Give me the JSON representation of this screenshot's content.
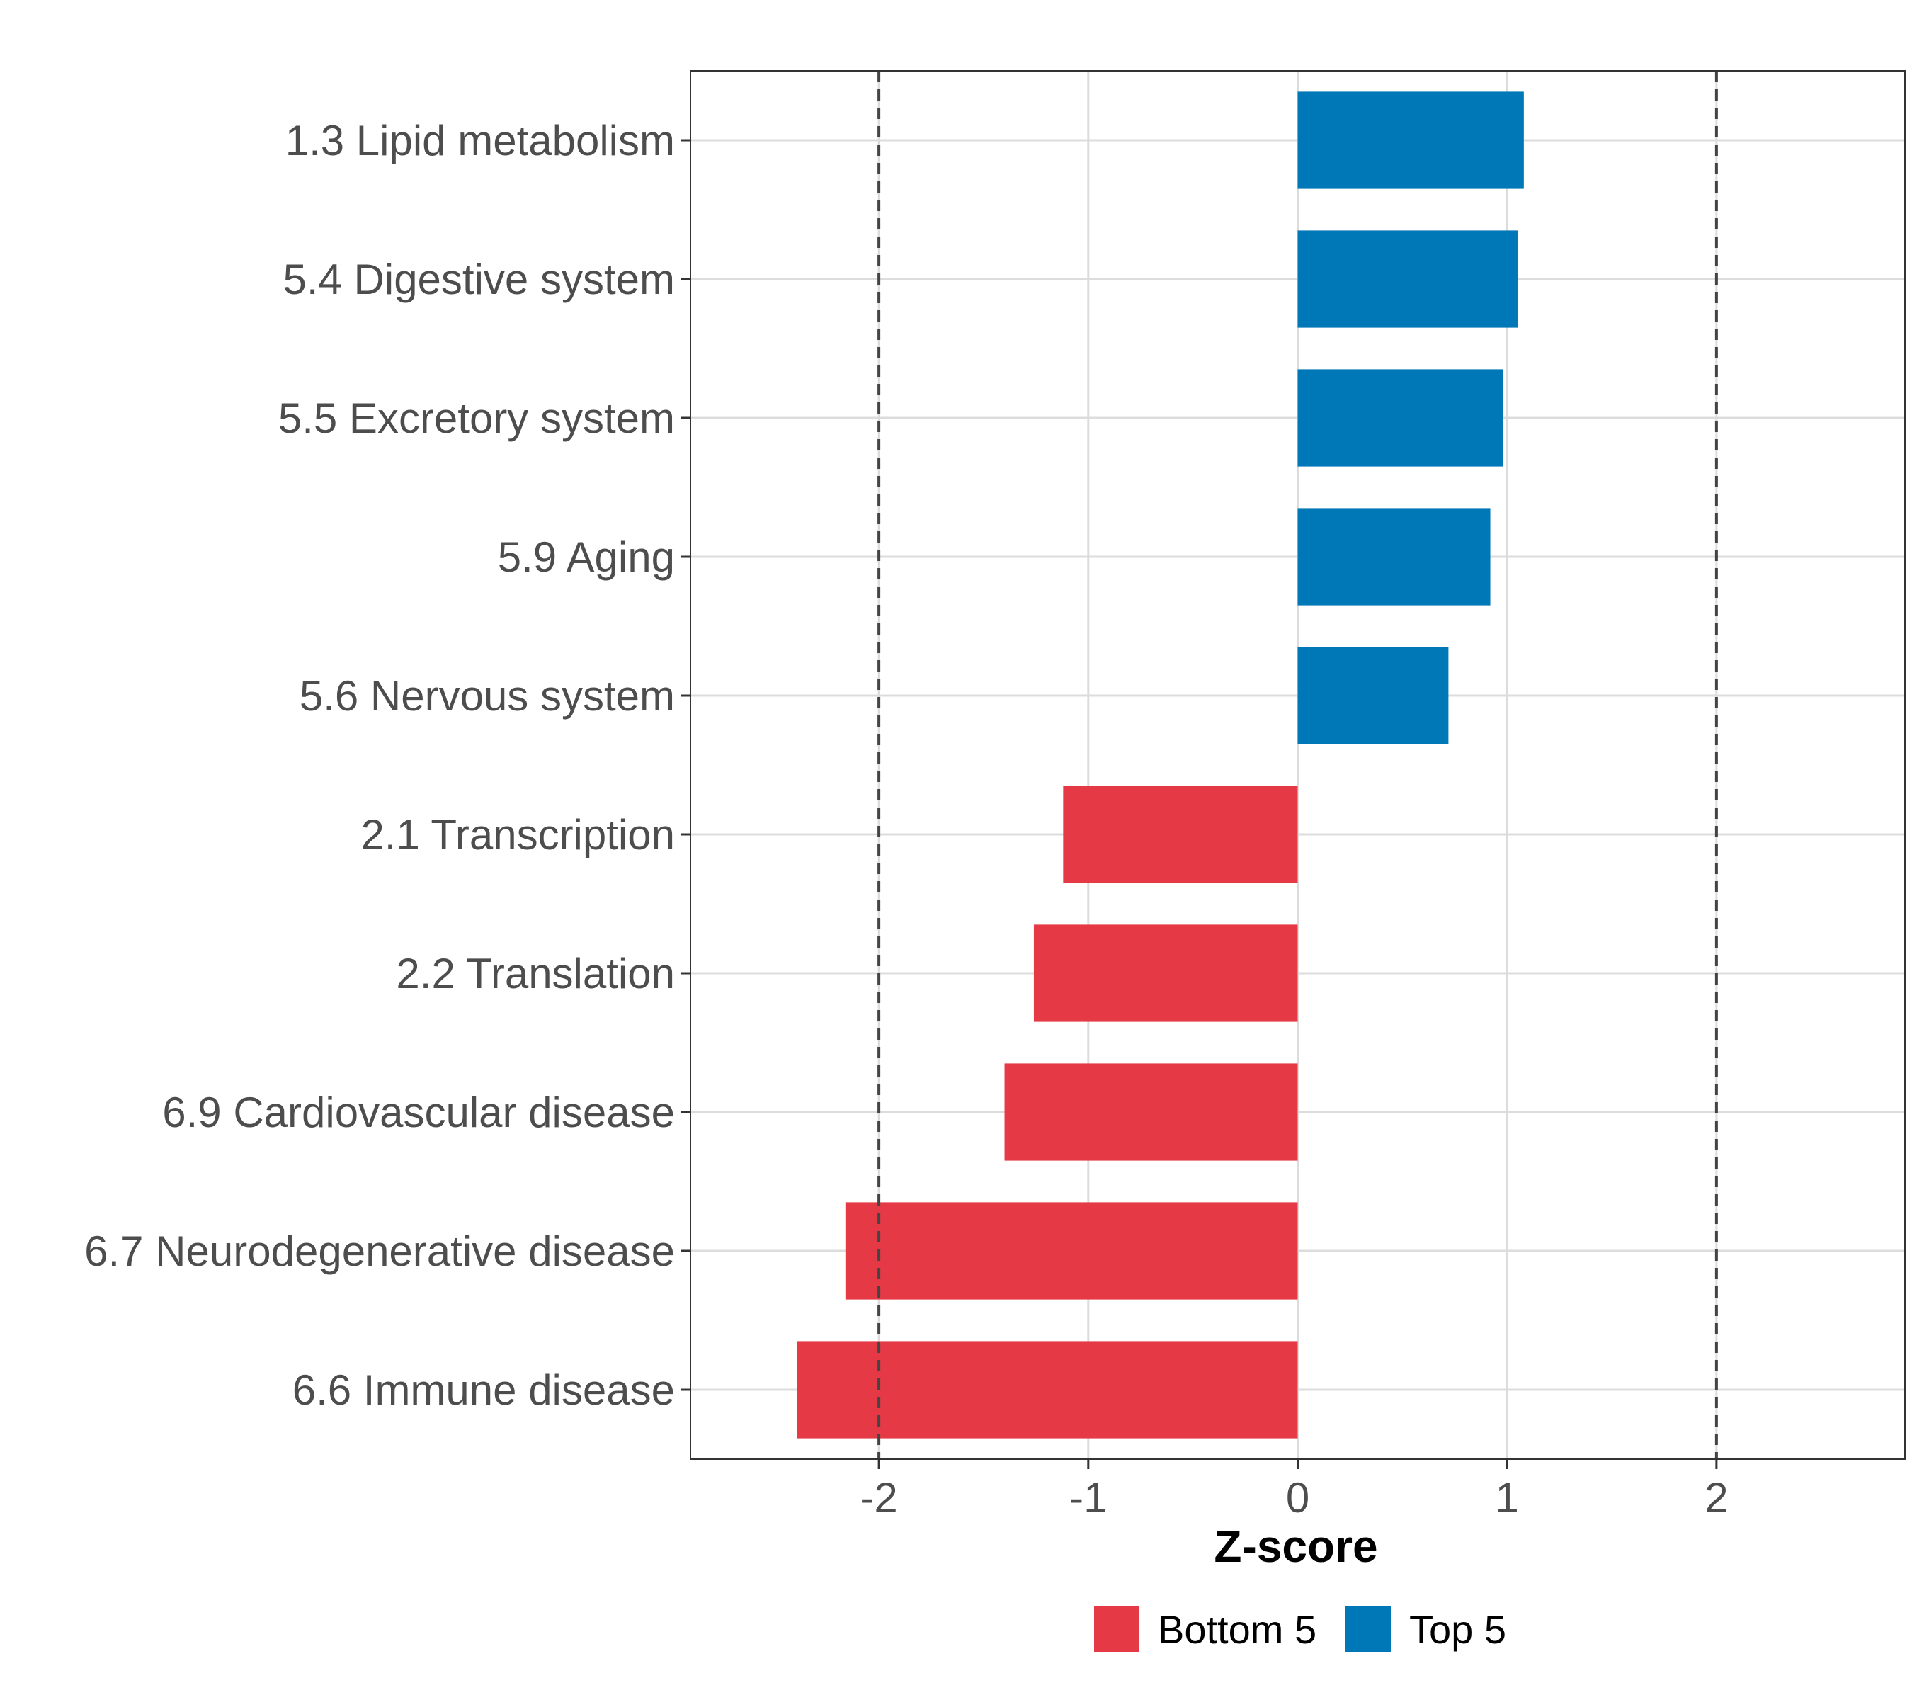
{
  "chart_data": {
    "type": "bar",
    "orientation": "horizontal",
    "title": "",
    "xlabel": "Z-score",
    "ylabel": "",
    "xlim": [
      -2.9,
      2.9
    ],
    "x_ticks": [
      -2,
      -1,
      0,
      1,
      2
    ],
    "x_tick_labels": [
      "-2",
      "-1",
      "0",
      "1",
      "2"
    ],
    "reference_lines": [
      -2,
      2
    ],
    "grid": true,
    "categories": [
      "1.3 Lipid metabolism",
      "5.4 Digestive system",
      "5.5 Excretory system",
      "5.9 Aging",
      "5.6 Nervous system",
      "2.1 Transcription",
      "2.2 Translation",
      "6.9 Cardiovascular disease",
      "6.7 Neurodegenerative disease",
      "6.6 Immune disease"
    ],
    "values": [
      1.08,
      1.05,
      0.98,
      0.92,
      0.72,
      -1.12,
      -1.26,
      -1.4,
      -2.16,
      -2.39
    ],
    "groups": [
      "Top 5",
      "Top 5",
      "Top 5",
      "Top 5",
      "Top 5",
      "Bottom 5",
      "Bottom 5",
      "Bottom 5",
      "Bottom 5",
      "Bottom 5"
    ],
    "legend": [
      {
        "name": "Bottom 5",
        "color": "#E63946"
      },
      {
        "name": "Top 5",
        "color": "#0077B6"
      }
    ],
    "legend_position": "bottom"
  }
}
